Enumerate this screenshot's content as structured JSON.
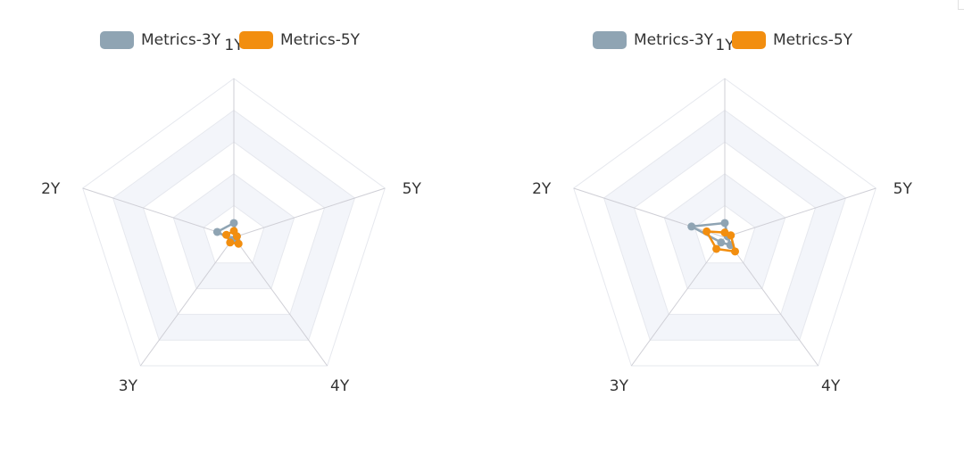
{
  "chart_data": [
    {
      "type": "radar",
      "indicators": [
        "1Y",
        "5Y",
        "4Y",
        "3Y",
        "2Y"
      ],
      "max": 100,
      "split_number": 5,
      "series": [
        {
          "name": "Metrics-3Y",
          "color": "#8FA4B3",
          "values": [
            9,
            2,
            3,
            2,
            11
          ]
        },
        {
          "name": "Metrics-5Y",
          "color": "#F28E0F",
          "values": [
            4,
            2,
            5,
            4,
            5
          ]
        }
      ],
      "legend_position": "top-center"
    },
    {
      "type": "radar",
      "indicators": [
        "1Y",
        "5Y",
        "4Y",
        "3Y",
        "2Y"
      ],
      "max": 100,
      "split_number": 5,
      "series": [
        {
          "name": "Metrics-3Y",
          "color": "#8FA4B3",
          "values": [
            9,
            2,
            6,
            4,
            22
          ]
        },
        {
          "name": "Metrics-5Y",
          "color": "#F28E0F",
          "values": [
            3,
            4,
            11,
            9,
            12
          ]
        }
      ],
      "legend_position": "top-center"
    }
  ]
}
